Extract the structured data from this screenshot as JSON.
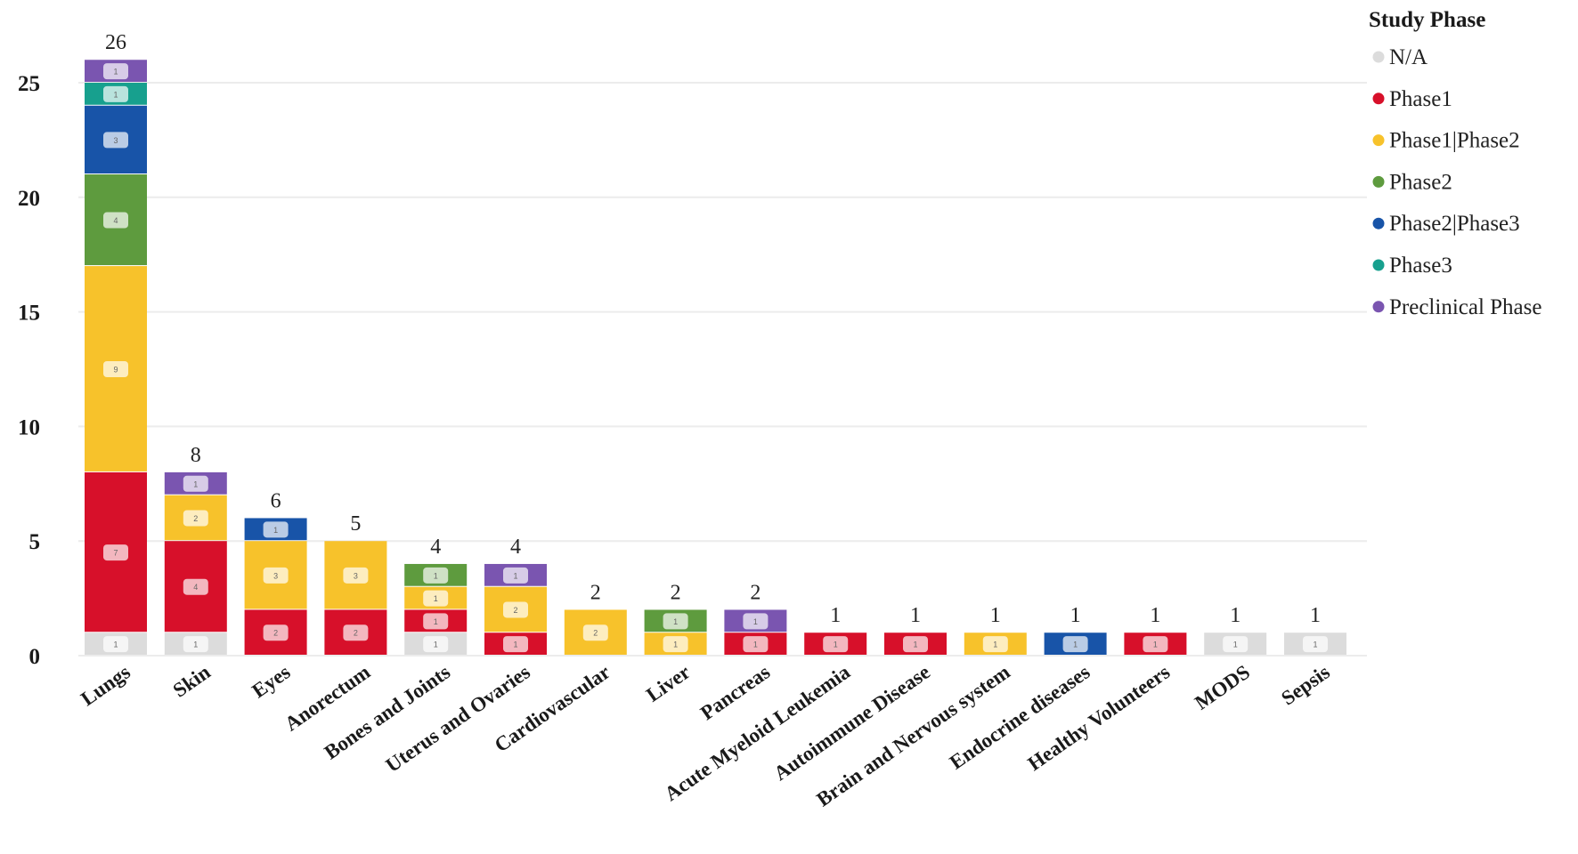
{
  "chart_data": {
    "type": "bar",
    "stacked": true,
    "title": "",
    "xlabel": "",
    "ylabel": "",
    "ylim": [
      0,
      26
    ],
    "yticks": [
      0,
      5,
      10,
      15,
      20,
      25
    ],
    "grid": true,
    "legend_position": "right",
    "legend_title": "Study Phase",
    "categories": [
      "Lungs",
      "Skin",
      "Eyes",
      "Anorectum",
      "Bones and Joints",
      "Uterus and Ovaries",
      "Cardiovascular",
      "Liver",
      "Pancreas",
      "Acute Myeloid Leukemia",
      "Autoimmune Disease",
      "Brain and Nervous system",
      "Endocrine diseases",
      "Healthy Volunteers",
      "MODS",
      "Sepsis"
    ],
    "totals": [
      26,
      8,
      6,
      5,
      4,
      4,
      2,
      2,
      2,
      1,
      1,
      1,
      1,
      1,
      1,
      1
    ],
    "series": [
      {
        "name": "N/A",
        "color": "#dcdcdc",
        "values": [
          1,
          1,
          0,
          0,
          1,
          0,
          0,
          0,
          0,
          0,
          0,
          0,
          0,
          0,
          1,
          1
        ]
      },
      {
        "name": "Phase1",
        "color": "#d7102a",
        "values": [
          7,
          4,
          2,
          2,
          1,
          1,
          0,
          0,
          1,
          1,
          1,
          0,
          0,
          1,
          0,
          0
        ]
      },
      {
        "name": "Phase1|Phase2",
        "color": "#f7c22b",
        "values": [
          9,
          2,
          3,
          3,
          1,
          2,
          2,
          1,
          0,
          0,
          0,
          1,
          0,
          0,
          0,
          0
        ]
      },
      {
        "name": "Phase2",
        "color": "#5e9b3e",
        "values": [
          4,
          0,
          0,
          0,
          1,
          0,
          0,
          1,
          0,
          0,
          0,
          0,
          0,
          0,
          0,
          0
        ]
      },
      {
        "name": "Phase2|Phase3",
        "color": "#1854a8",
        "values": [
          3,
          0,
          1,
          0,
          0,
          0,
          0,
          0,
          0,
          0,
          0,
          0,
          1,
          0,
          0,
          0
        ]
      },
      {
        "name": "Phase3",
        "color": "#17a08e",
        "values": [
          1,
          0,
          0,
          0,
          0,
          0,
          0,
          0,
          0,
          0,
          0,
          0,
          0,
          0,
          0,
          0
        ]
      },
      {
        "name": "Preclinical Phase",
        "color": "#7a55b0",
        "values": [
          1,
          1,
          0,
          0,
          0,
          1,
          0,
          0,
          1,
          0,
          0,
          0,
          0,
          0,
          0,
          0
        ]
      }
    ]
  }
}
